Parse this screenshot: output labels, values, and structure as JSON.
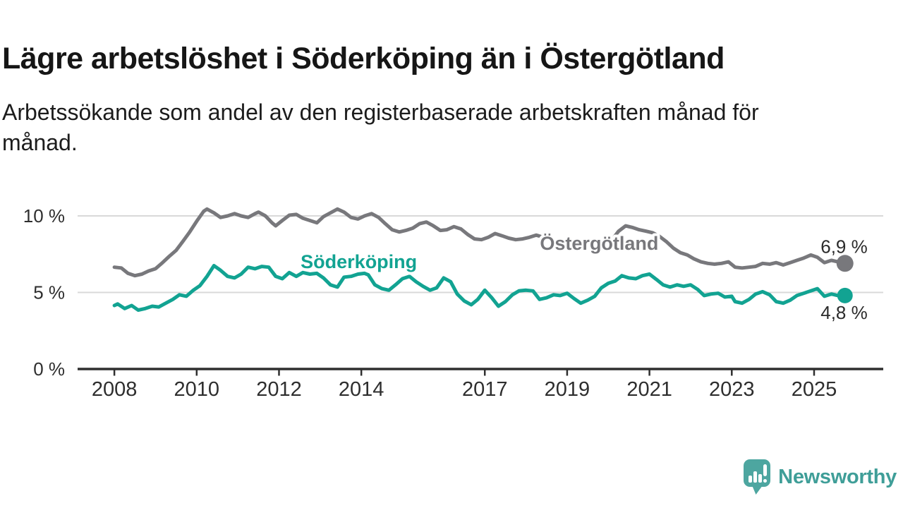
{
  "header": {
    "title": "Lägre arbetslöshet i Söderköping än i Östergötland",
    "subtitle_lines": [
      "Arbetssökande som andel av den registerbaserade arbetskraften månad för",
      "månad."
    ]
  },
  "branding": {
    "logo_text": "Newsworthy",
    "logo_text_color": "#3f9e98",
    "logo_icon_color": "#4da6a0"
  },
  "chart_data": {
    "type": "line",
    "unit": "%",
    "grid": "horizontal-only",
    "legend_position": "inline-labels",
    "x_axis": {
      "range": [
        2007.107,
        2026.68
      ],
      "ticks": [
        {
          "value": 2008,
          "label": "2008"
        },
        {
          "value": 2010,
          "label": "2010"
        },
        {
          "value": 2012,
          "label": "2012"
        },
        {
          "value": 2014,
          "label": "2014"
        },
        {
          "value": 2017,
          "label": "2017"
        },
        {
          "value": 2019,
          "label": "2019"
        },
        {
          "value": 2021,
          "label": "2021"
        },
        {
          "value": 2023,
          "label": "2023"
        },
        {
          "value": 2025,
          "label": "2025"
        }
      ]
    },
    "y_axis": {
      "range": [
        0,
        11.2
      ],
      "ticks": [
        {
          "value": 0,
          "label": "0 %"
        },
        {
          "value": 5,
          "label": "5 %"
        },
        {
          "value": 10,
          "label": "10 %"
        }
      ]
    },
    "annotations": [
      {
        "text": "Söderköping",
        "x": 2013.94,
        "y": 7.0,
        "color": "#12a392"
      },
      {
        "text": "Östergötland",
        "x": 2019.78,
        "y": 8.2,
        "color": "#78787c"
      }
    ],
    "series": [
      {
        "name": "Östergötland",
        "color": "#78787c",
        "end_value": 6.9,
        "end_label": "6,9 %",
        "points": [
          [
            2008.0,
            6.65
          ],
          [
            2008.17,
            6.6
          ],
          [
            2008.33,
            6.25
          ],
          [
            2008.5,
            6.1
          ],
          [
            2008.67,
            6.2
          ],
          [
            2008.83,
            6.4
          ],
          [
            2009.0,
            6.55
          ],
          [
            2009.17,
            6.95
          ],
          [
            2009.33,
            7.35
          ],
          [
            2009.5,
            7.75
          ],
          [
            2009.67,
            8.35
          ],
          [
            2009.83,
            8.95
          ],
          [
            2010.0,
            9.65
          ],
          [
            2010.17,
            10.3
          ],
          [
            2010.25,
            10.45
          ],
          [
            2010.42,
            10.2
          ],
          [
            2010.58,
            9.9
          ],
          [
            2010.75,
            10.0
          ],
          [
            2010.92,
            10.15
          ],
          [
            2011.08,
            10.0
          ],
          [
            2011.25,
            9.9
          ],
          [
            2011.42,
            10.15
          ],
          [
            2011.5,
            10.25
          ],
          [
            2011.67,
            10.0
          ],
          [
            2011.83,
            9.55
          ],
          [
            2011.92,
            9.35
          ],
          [
            2012.08,
            9.7
          ],
          [
            2012.25,
            10.05
          ],
          [
            2012.42,
            10.1
          ],
          [
            2012.58,
            9.85
          ],
          [
            2012.75,
            9.7
          ],
          [
            2012.92,
            9.55
          ],
          [
            2013.08,
            9.95
          ],
          [
            2013.25,
            10.2
          ],
          [
            2013.42,
            10.45
          ],
          [
            2013.58,
            10.25
          ],
          [
            2013.75,
            9.9
          ],
          [
            2013.92,
            9.8
          ],
          [
            2014.08,
            10.0
          ],
          [
            2014.25,
            10.15
          ],
          [
            2014.42,
            9.9
          ],
          [
            2014.58,
            9.5
          ],
          [
            2014.75,
            9.1
          ],
          [
            2014.92,
            8.95
          ],
          [
            2015.08,
            9.05
          ],
          [
            2015.25,
            9.2
          ],
          [
            2015.42,
            9.5
          ],
          [
            2015.58,
            9.6
          ],
          [
            2015.75,
            9.35
          ],
          [
            2015.92,
            9.05
          ],
          [
            2016.08,
            9.1
          ],
          [
            2016.25,
            9.3
          ],
          [
            2016.42,
            9.15
          ],
          [
            2016.58,
            8.8
          ],
          [
            2016.75,
            8.5
          ],
          [
            2016.92,
            8.45
          ],
          [
            2017.08,
            8.6
          ],
          [
            2017.25,
            8.85
          ],
          [
            2017.42,
            8.7
          ],
          [
            2017.58,
            8.55
          ],
          [
            2017.75,
            8.45
          ],
          [
            2017.92,
            8.5
          ],
          [
            2018.08,
            8.6
          ],
          [
            2018.25,
            8.75
          ],
          [
            2018.42,
            8.6
          ],
          [
            2018.58,
            8.45
          ],
          [
            2018.75,
            8.35
          ],
          [
            2018.92,
            8.2
          ],
          [
            2019.08,
            8.05
          ],
          [
            2019.25,
            8.15
          ],
          [
            2019.42,
            8.25
          ],
          [
            2019.58,
            8.2
          ],
          [
            2019.75,
            8.1
          ],
          [
            2019.92,
            8.15
          ],
          [
            2020.08,
            8.4
          ],
          [
            2020.25,
            9.0
          ],
          [
            2020.42,
            9.35
          ],
          [
            2020.58,
            9.25
          ],
          [
            2020.75,
            9.1
          ],
          [
            2020.92,
            9.0
          ],
          [
            2021.08,
            8.9
          ],
          [
            2021.25,
            8.65
          ],
          [
            2021.42,
            8.3
          ],
          [
            2021.58,
            7.9
          ],
          [
            2021.75,
            7.6
          ],
          [
            2021.92,
            7.45
          ],
          [
            2022.08,
            7.2
          ],
          [
            2022.25,
            7.0
          ],
          [
            2022.42,
            6.9
          ],
          [
            2022.58,
            6.85
          ],
          [
            2022.75,
            6.9
          ],
          [
            2022.92,
            7.0
          ],
          [
            2023.08,
            6.65
          ],
          [
            2023.25,
            6.6
          ],
          [
            2023.42,
            6.65
          ],
          [
            2023.58,
            6.7
          ],
          [
            2023.75,
            6.9
          ],
          [
            2023.92,
            6.85
          ],
          [
            2024.08,
            6.95
          ],
          [
            2024.25,
            6.8
          ],
          [
            2024.42,
            6.95
          ],
          [
            2024.58,
            7.1
          ],
          [
            2024.75,
            7.25
          ],
          [
            2024.92,
            7.45
          ],
          [
            2025.08,
            7.3
          ],
          [
            2025.25,
            6.95
          ],
          [
            2025.42,
            7.1
          ],
          [
            2025.58,
            7.0
          ],
          [
            2025.75,
            6.9
          ]
        ]
      },
      {
        "name": "Söderköping",
        "color": "#12a392",
        "end_value": 4.8,
        "end_label": "4,8 %",
        "points": [
          [
            2008.0,
            4.15
          ],
          [
            2008.08,
            4.25
          ],
          [
            2008.25,
            3.95
          ],
          [
            2008.42,
            4.15
          ],
          [
            2008.58,
            3.85
          ],
          [
            2008.75,
            3.95
          ],
          [
            2008.92,
            4.1
          ],
          [
            2009.08,
            4.05
          ],
          [
            2009.25,
            4.3
          ],
          [
            2009.42,
            4.55
          ],
          [
            2009.58,
            4.85
          ],
          [
            2009.75,
            4.75
          ],
          [
            2009.92,
            5.15
          ],
          [
            2010.08,
            5.45
          ],
          [
            2010.25,
            6.05
          ],
          [
            2010.42,
            6.75
          ],
          [
            2010.58,
            6.45
          ],
          [
            2010.75,
            6.05
          ],
          [
            2010.92,
            5.95
          ],
          [
            2011.08,
            6.2
          ],
          [
            2011.25,
            6.65
          ],
          [
            2011.42,
            6.55
          ],
          [
            2011.58,
            6.7
          ],
          [
            2011.75,
            6.65
          ],
          [
            2011.92,
            6.05
          ],
          [
            2012.08,
            5.9
          ],
          [
            2012.25,
            6.3
          ],
          [
            2012.42,
            6.05
          ],
          [
            2012.58,
            6.3
          ],
          [
            2012.75,
            6.2
          ],
          [
            2012.92,
            6.25
          ],
          [
            2013.08,
            5.95
          ],
          [
            2013.25,
            5.5
          ],
          [
            2013.42,
            5.35
          ],
          [
            2013.58,
            6.0
          ],
          [
            2013.75,
            6.05
          ],
          [
            2013.92,
            6.2
          ],
          [
            2014.08,
            6.25
          ],
          [
            2014.17,
            6.15
          ],
          [
            2014.33,
            5.5
          ],
          [
            2014.5,
            5.25
          ],
          [
            2014.67,
            5.15
          ],
          [
            2014.83,
            5.5
          ],
          [
            2015.0,
            5.9
          ],
          [
            2015.17,
            6.05
          ],
          [
            2015.33,
            5.7
          ],
          [
            2015.5,
            5.4
          ],
          [
            2015.67,
            5.15
          ],
          [
            2015.83,
            5.3
          ],
          [
            2016.0,
            5.95
          ],
          [
            2016.17,
            5.7
          ],
          [
            2016.33,
            4.9
          ],
          [
            2016.5,
            4.45
          ],
          [
            2016.67,
            4.2
          ],
          [
            2016.83,
            4.55
          ],
          [
            2017.0,
            5.15
          ],
          [
            2017.17,
            4.65
          ],
          [
            2017.33,
            4.1
          ],
          [
            2017.5,
            4.4
          ],
          [
            2017.67,
            4.85
          ],
          [
            2017.83,
            5.1
          ],
          [
            2018.0,
            5.15
          ],
          [
            2018.17,
            5.1
          ],
          [
            2018.33,
            4.55
          ],
          [
            2018.5,
            4.65
          ],
          [
            2018.67,
            4.85
          ],
          [
            2018.83,
            4.8
          ],
          [
            2019.0,
            4.95
          ],
          [
            2019.17,
            4.6
          ],
          [
            2019.33,
            4.3
          ],
          [
            2019.5,
            4.5
          ],
          [
            2019.67,
            4.75
          ],
          [
            2019.83,
            5.3
          ],
          [
            2020.0,
            5.6
          ],
          [
            2020.17,
            5.75
          ],
          [
            2020.33,
            6.1
          ],
          [
            2020.5,
            5.95
          ],
          [
            2020.67,
            5.9
          ],
          [
            2020.83,
            6.1
          ],
          [
            2021.0,
            6.2
          ],
          [
            2021.17,
            5.85
          ],
          [
            2021.33,
            5.5
          ],
          [
            2021.5,
            5.35
          ],
          [
            2021.67,
            5.5
          ],
          [
            2021.83,
            5.4
          ],
          [
            2022.0,
            5.5
          ],
          [
            2022.17,
            5.2
          ],
          [
            2022.33,
            4.8
          ],
          [
            2022.5,
            4.9
          ],
          [
            2022.67,
            4.95
          ],
          [
            2022.83,
            4.7
          ],
          [
            2023.0,
            4.75
          ],
          [
            2023.08,
            4.4
          ],
          [
            2023.25,
            4.3
          ],
          [
            2023.42,
            4.55
          ],
          [
            2023.58,
            4.9
          ],
          [
            2023.75,
            5.05
          ],
          [
            2023.92,
            4.85
          ],
          [
            2024.08,
            4.4
          ],
          [
            2024.25,
            4.3
          ],
          [
            2024.42,
            4.5
          ],
          [
            2024.58,
            4.8
          ],
          [
            2024.75,
            4.95
          ],
          [
            2024.92,
            5.1
          ],
          [
            2025.08,
            5.25
          ],
          [
            2025.25,
            4.75
          ],
          [
            2025.42,
            4.9
          ],
          [
            2025.58,
            4.8
          ],
          [
            2025.75,
            4.8
          ]
        ]
      }
    ]
  }
}
